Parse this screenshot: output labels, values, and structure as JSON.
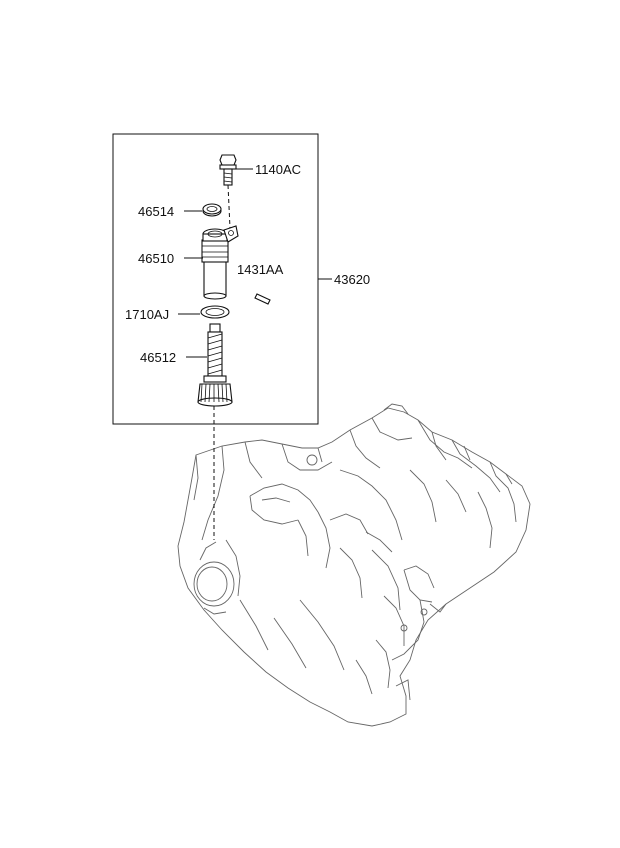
{
  "parts": [
    {
      "id": "bolt",
      "number": "1140AC"
    },
    {
      "id": "oring-top",
      "number": "46514"
    },
    {
      "id": "sleeve",
      "number": "46510"
    },
    {
      "id": "pin",
      "number": "1431AA"
    },
    {
      "id": "gasket",
      "number": "1710AJ"
    },
    {
      "id": "driven-gear",
      "number": "46512"
    },
    {
      "id": "assembly",
      "number": "43620"
    }
  ]
}
